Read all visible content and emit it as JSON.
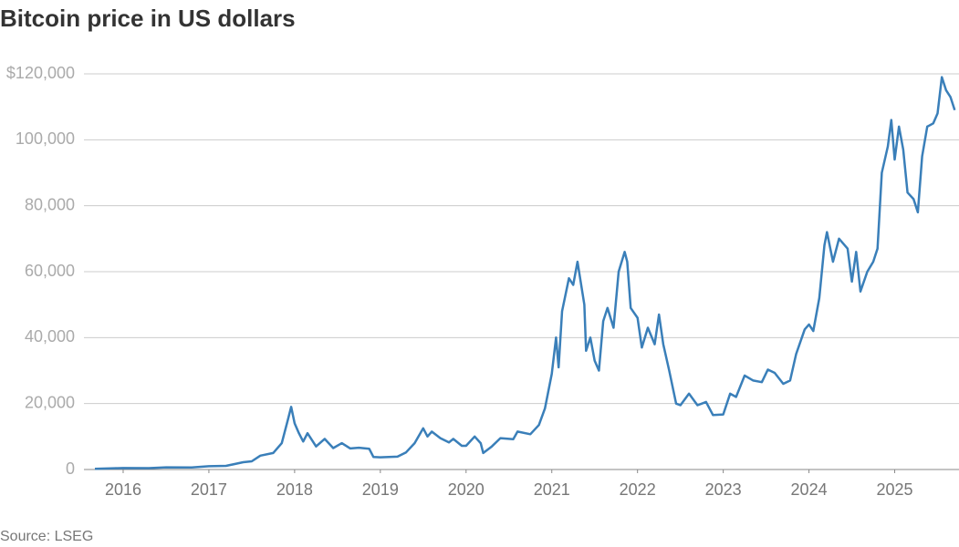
{
  "chart_data": {
    "type": "line",
    "title": "Bitcoin price in US dollars",
    "source": "Source: LSEG",
    "x": [
      2015.67,
      2015.9,
      2016.0,
      2016.3,
      2016.5,
      2016.8,
      2017.0,
      2017.2,
      2017.4,
      2017.5,
      2017.6,
      2017.75,
      2017.85,
      2017.92,
      2017.96,
      2018.0,
      2018.05,
      2018.1,
      2018.15,
      2018.25,
      2018.35,
      2018.45,
      2018.55,
      2018.65,
      2018.75,
      2018.87,
      2018.92,
      2019.0,
      2019.2,
      2019.3,
      2019.4,
      2019.5,
      2019.55,
      2019.6,
      2019.7,
      2019.8,
      2019.85,
      2019.95,
      2020.0,
      2020.1,
      2020.17,
      2020.2,
      2020.3,
      2020.4,
      2020.55,
      2020.6,
      2020.75,
      2020.85,
      2020.92,
      2021.0,
      2021.05,
      2021.08,
      2021.12,
      2021.2,
      2021.25,
      2021.3,
      2021.38,
      2021.4,
      2021.45,
      2021.5,
      2021.55,
      2021.6,
      2021.65,
      2021.72,
      2021.78,
      2021.85,
      2021.88,
      2021.92,
      2022.0,
      2022.05,
      2022.12,
      2022.2,
      2022.25,
      2022.3,
      2022.37,
      2022.45,
      2022.5,
      2022.6,
      2022.7,
      2022.8,
      2022.88,
      2023.0,
      2023.08,
      2023.15,
      2023.25,
      2023.35,
      2023.45,
      2023.52,
      2023.6,
      2023.7,
      2023.78,
      2023.85,
      2023.95,
      2024.0,
      2024.05,
      2024.12,
      2024.18,
      2024.21,
      2024.28,
      2024.35,
      2024.45,
      2024.5,
      2024.55,
      2024.6,
      2024.68,
      2024.75,
      2024.8,
      2024.85,
      2024.92,
      2024.96,
      2025.0,
      2025.05,
      2025.1,
      2025.15,
      2025.22,
      2025.27,
      2025.32,
      2025.38,
      2025.45,
      2025.5,
      2025.55,
      2025.6,
      2025.65,
      2025.7
    ],
    "series": [
      {
        "color": "#3a7fb9",
        "values": [
          230,
          400,
          430,
          420,
          650,
          620,
          1000,
          1100,
          2200,
          2500,
          4200,
          5000,
          8000,
          15000,
          19000,
          14000,
          11000,
          8500,
          11000,
          7000,
          9300,
          6500,
          8000,
          6400,
          6600,
          6300,
          3800,
          3700,
          3900,
          5200,
          8000,
          12500,
          10000,
          11500,
          9500,
          8200,
          9300,
          7200,
          7200,
          10000,
          8000,
          5000,
          7000,
          9500,
          9200,
          11500,
          10700,
          13500,
          18500,
          29000,
          40000,
          31000,
          48000,
          58000,
          56000,
          63000,
          50000,
          36000,
          40000,
          33000,
          30000,
          45000,
          49000,
          43000,
          60000,
          66000,
          63000,
          49000,
          46000,
          37000,
          43000,
          38000,
          47000,
          38000,
          30000,
          20000,
          19500,
          23000,
          19500,
          20500,
          16500,
          16700,
          23000,
          22000,
          28500,
          27000,
          26500,
          30300,
          29300,
          26000,
          27000,
          35000,
          42500,
          44000,
          42000,
          52000,
          68000,
          72000,
          63000,
          70000,
          67000,
          57000,
          66000,
          54000,
          60000,
          63000,
          67000,
          90000,
          98000,
          106000,
          94000,
          104000,
          97000,
          84000,
          82000,
          78000,
          95000,
          104000,
          105000,
          108000,
          119000,
          115000,
          113000,
          109000
        ]
      }
    ],
    "xlim": [
      2015.5,
      2025.75
    ],
    "xticks": [
      2016,
      2017,
      2018,
      2019,
      2020,
      2021,
      2022,
      2023,
      2024,
      2025
    ],
    "ylim": [
      0,
      120000
    ],
    "yticks": [
      0,
      {
        "value": 20000,
        "label": "20,000"
      },
      {
        "value": 40000,
        "label": "40,000"
      },
      {
        "value": 60000,
        "label": "60,000"
      },
      {
        "value": 80000,
        "label": "80,000"
      },
      {
        "value": 100000,
        "label": "100,000"
      },
      {
        "value": 120000,
        "label": "$120,000"
      }
    ],
    "grid": true
  }
}
